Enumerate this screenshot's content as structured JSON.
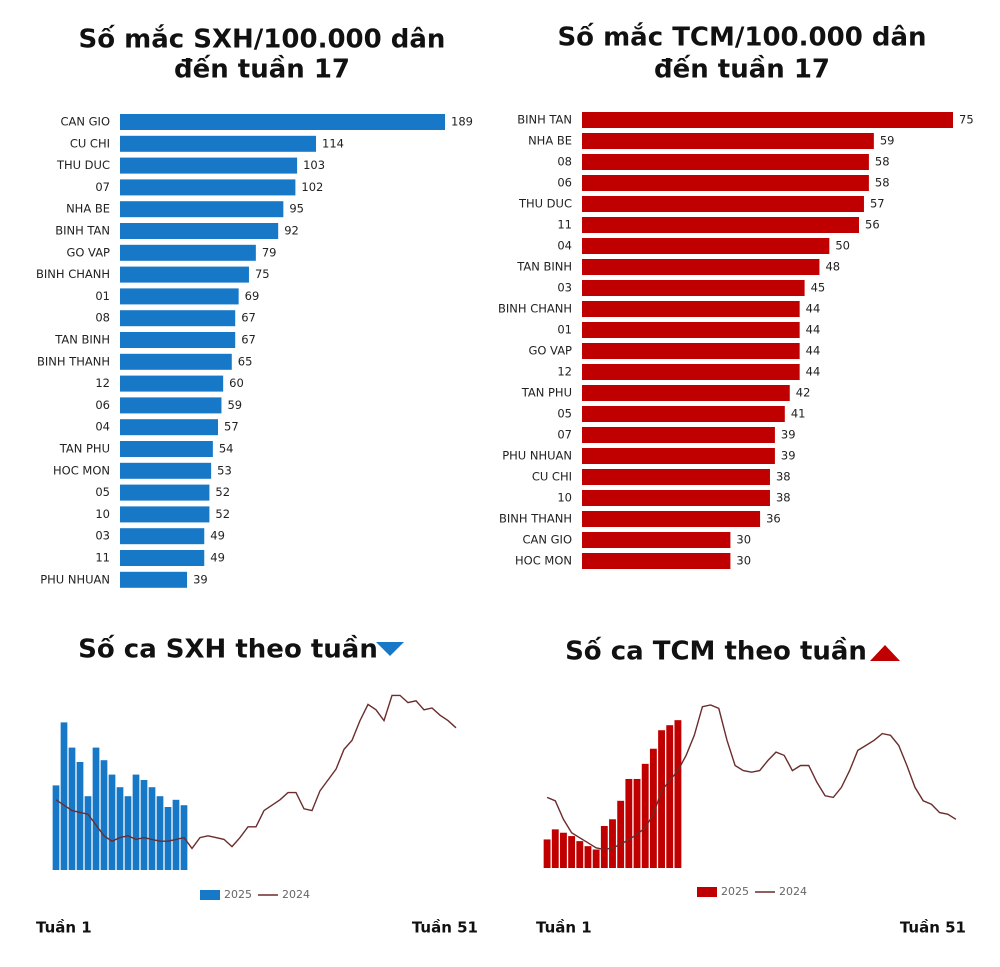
{
  "chart_data": [
    {
      "type": "hbar",
      "title": [
        "Số mắc SXH/100.000 dân",
        "đến tuần 17"
      ],
      "color": "#1878c8",
      "xlim": [
        0,
        189
      ],
      "categories": [
        "CAN GIO",
        "CU CHI",
        "THU DUC",
        "07",
        "NHA BE",
        "BINH TAN",
        "GO VAP",
        "BINH CHANH",
        "01",
        "08",
        "TAN BINH",
        "BINH THANH",
        "12",
        "06",
        "04",
        "TAN PHU",
        "HOC MON",
        "05",
        "10",
        "03",
        "11",
        "PHU NHUAN"
      ],
      "values": [
        189,
        114,
        103,
        102,
        95,
        92,
        79,
        75,
        69,
        67,
        67,
        65,
        60,
        59,
        57,
        54,
        53,
        52,
        52,
        49,
        49,
        39
      ]
    },
    {
      "type": "hbar",
      "title": [
        "Số mắc TCM/100.000 dân",
        "đến tuần 17"
      ],
      "color": "#c00000",
      "xlim": [
        0,
        75
      ],
      "categories": [
        "BINH TAN",
        "NHA BE",
        "08",
        "06",
        "THU DUC",
        "11",
        "04",
        "TAN BINH",
        "03",
        "BINH CHANH",
        "01",
        "GO VAP",
        "12",
        "TAN PHU",
        "05",
        "07",
        "PHU NHUAN",
        "CU CHI",
        "10",
        "BINH THANH",
        "CAN GIO",
        "HOC MON"
      ],
      "values": [
        75,
        59,
        58,
        58,
        57,
        56,
        50,
        48,
        45,
        44,
        44,
        44,
        44,
        42,
        41,
        39,
        39,
        38,
        38,
        36,
        30,
        30
      ]
    },
    {
      "type": "combo",
      "title": "Số ca SXH theo tuần",
      "trend": "down",
      "ylim": [
        0,
        100
      ],
      "categories": [
        "Tuần 1",
        null,
        null,
        null,
        null,
        null,
        null,
        null,
        null,
        null,
        null,
        null,
        null,
        null,
        null,
        null,
        null,
        null,
        null,
        null,
        null,
        null,
        null,
        null,
        null,
        null,
        null,
        null,
        null,
        null,
        null,
        null,
        null,
        null,
        null,
        null,
        null,
        null,
        null,
        null,
        null,
        null,
        null,
        null,
        null,
        null,
        null,
        null,
        null,
        null,
        "Tuần 51"
      ],
      "series": [
        {
          "name": "2025",
          "kind": "bar",
          "color": "#1878c8",
          "values": [
            47,
            82,
            68,
            60,
            41,
            68,
            61,
            53,
            46,
            41,
            53,
            50,
            46,
            41,
            35,
            39,
            36,
            null,
            null,
            null,
            null,
            null,
            null,
            null,
            null,
            null,
            null,
            null,
            null,
            null,
            null,
            null,
            null,
            null,
            null,
            null,
            null,
            null,
            null,
            null,
            null,
            null,
            null,
            null,
            null,
            null,
            null,
            null,
            null,
            null,
            null
          ]
        },
        {
          "name": "2024",
          "kind": "line",
          "color": "#6b2c2c",
          "values": [
            39,
            36,
            33,
            32,
            31,
            25,
            19,
            16,
            18,
            19,
            17,
            18,
            17,
            16,
            16,
            17,
            18,
            12,
            18,
            19,
            18,
            17,
            13,
            18,
            24,
            24,
            33,
            36,
            39,
            43,
            43,
            34,
            33,
            44,
            50,
            56,
            67,
            72,
            83,
            92,
            89,
            83,
            97,
            97,
            93,
            94,
            89,
            90,
            86,
            83,
            79
          ]
        }
      ]
    },
    {
      "type": "combo",
      "title": "Số ca TCM theo tuần",
      "trend": "up",
      "ylim": [
        0,
        100
      ],
      "categories": [
        "Tuần 1",
        null,
        null,
        null,
        null,
        null,
        null,
        null,
        null,
        null,
        null,
        null,
        null,
        null,
        null,
        null,
        null,
        null,
        null,
        null,
        null,
        null,
        null,
        null,
        null,
        null,
        null,
        null,
        null,
        null,
        null,
        null,
        null,
        null,
        null,
        null,
        null,
        null,
        null,
        null,
        null,
        null,
        null,
        null,
        null,
        null,
        null,
        null,
        null,
        null,
        "Tuần 51"
      ],
      "series": [
        {
          "name": "2025",
          "kind": "bar",
          "color": "#c00000",
          "values": [
            17,
            23,
            21,
            19,
            16,
            13,
            11,
            25,
            29,
            40,
            53,
            53,
            62,
            71,
            82,
            85,
            88,
            null,
            null,
            null,
            null,
            null,
            null,
            null,
            null,
            null,
            null,
            null,
            null,
            null,
            null,
            null,
            null,
            null,
            null,
            null,
            null,
            null,
            null,
            null,
            null,
            null,
            null,
            null,
            null,
            null,
            null,
            null,
            null,
            null,
            null
          ]
        },
        {
          "name": "2024",
          "kind": "line",
          "color": "#6b2c2c",
          "values": [
            42,
            40,
            29,
            21,
            18,
            15,
            12,
            11,
            12,
            14,
            17,
            20,
            24,
            32,
            46,
            52,
            58,
            67,
            79,
            96,
            97,
            95,
            76,
            61,
            58,
            57,
            58,
            64,
            69,
            67,
            58,
            61,
            61,
            51,
            43,
            42,
            48,
            58,
            70,
            73,
            76,
            80,
            79,
            73,
            61,
            48,
            40,
            38,
            33,
            32,
            29
          ]
        }
      ]
    }
  ]
}
